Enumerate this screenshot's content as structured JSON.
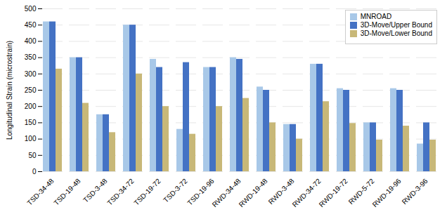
{
  "chart_data": {
    "type": "bar",
    "categories": [
      "TSD-34-48",
      "TSD-19-48",
      "TSD-3-48",
      "TSD-34-72",
      "TSD-19-72",
      "TSD-3-72",
      "TSD-19-96",
      "RWD-34-48",
      "RWD-19-48",
      "RWD-3-48",
      "RWD-34-72",
      "RWD-19-72",
      "RWD-5-72",
      "RWD-19-96",
      "RWD-3-96"
    ],
    "series": [
      {
        "name": "MNROAD",
        "color": "#a8c8e8",
        "values": [
          460,
          350,
          175,
          450,
          345,
          130,
          320,
          350,
          260,
          145,
          330,
          255,
          150,
          255,
          85
        ]
      },
      {
        "name": "3D-Move/Upper Bound",
        "color": "#4472c4",
        "values": [
          460,
          350,
          175,
          450,
          320,
          335,
          320,
          345,
          250,
          145,
          330,
          250,
          150,
          250,
          150
        ]
      },
      {
        "name": "3D-Move/Lower Bound",
        "color": "#c8b878",
        "values": [
          315,
          210,
          120,
          300,
          200,
          115,
          200,
          225,
          150,
          100,
          215,
          148,
          97,
          140,
          97
        ]
      }
    ],
    "ylabel": "Longitudinal Strain (microstrain)",
    "ylim": [
      0,
      500
    ],
    "yticks": [
      0,
      50,
      100,
      150,
      200,
      250,
      300,
      350,
      400,
      450,
      500
    ],
    "grid": true,
    "legend": "upper right"
  }
}
